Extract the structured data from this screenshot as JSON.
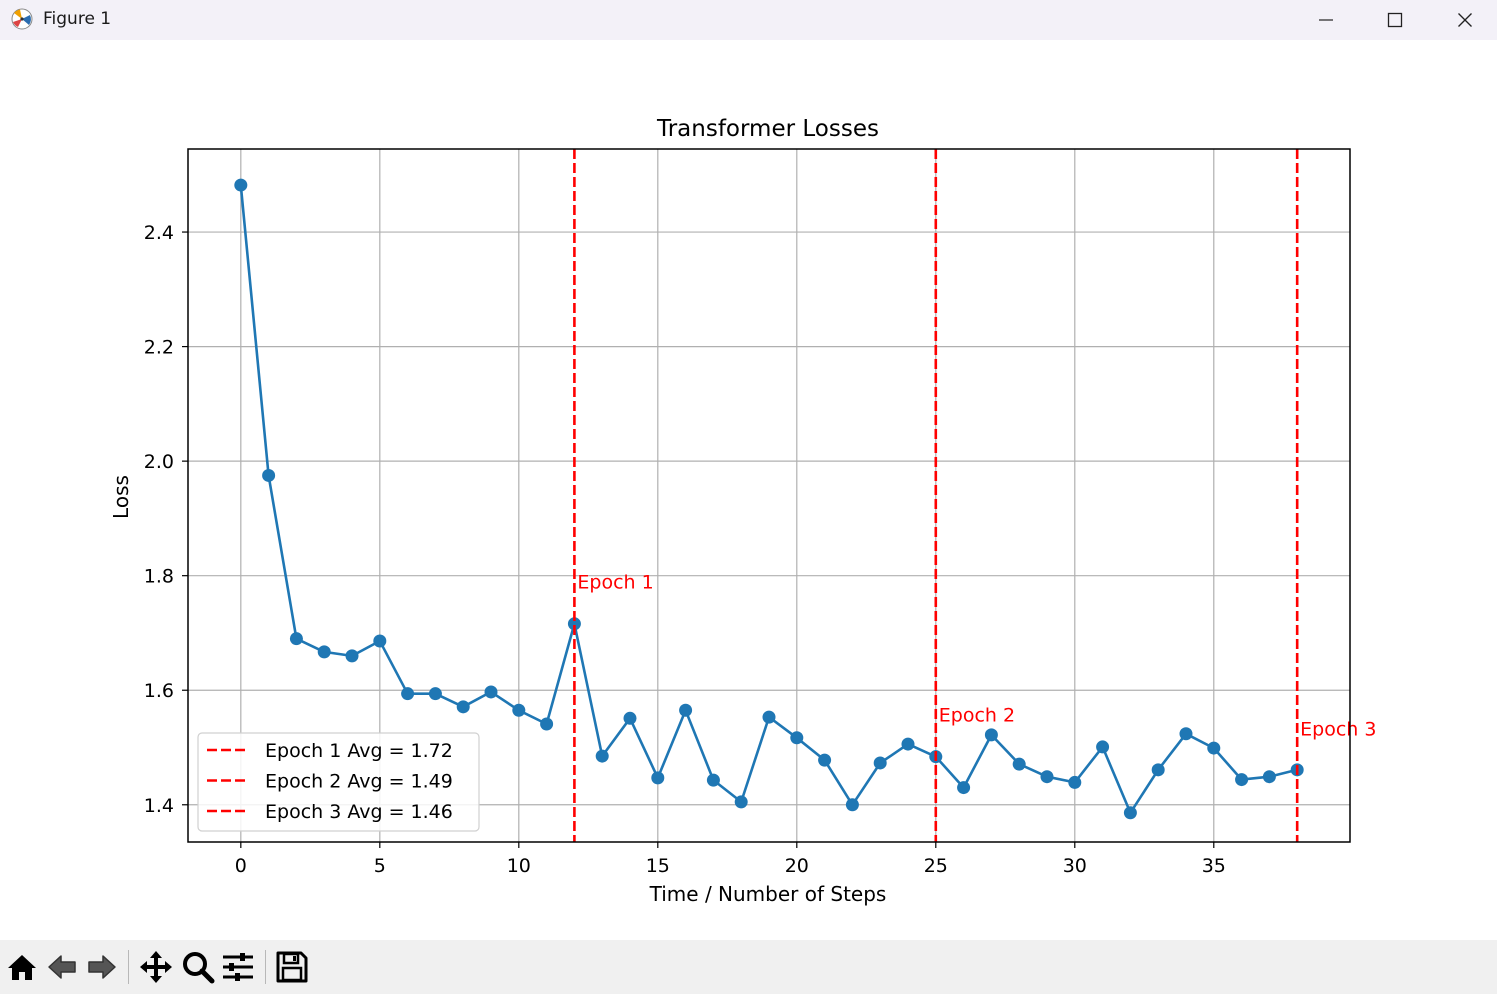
{
  "window": {
    "title": "Figure 1",
    "controls": [
      "minimize-icon",
      "maximize-icon",
      "close-icon"
    ]
  },
  "toolbar": {
    "tools": [
      "home-icon",
      "back-arrow-icon",
      "forward-arrow-icon",
      "pan-icon",
      "zoom-icon",
      "configure-subplots-icon",
      "save-icon"
    ]
  },
  "chart_data": {
    "type": "line",
    "title": "Transformer Losses",
    "xlabel": "Time / Number of Steps",
    "ylabel": "Loss",
    "xlim": [
      -1.9,
      39.9
    ],
    "ylim": [
      1.335,
      2.545
    ],
    "xticks": [
      0,
      5,
      10,
      15,
      20,
      25,
      30,
      35
    ],
    "yticks": [
      1.4,
      1.6,
      1.8,
      2.0,
      2.2,
      2.4
    ],
    "xtick_labels": [
      "0",
      "5",
      "10",
      "15",
      "20",
      "25",
      "30",
      "35"
    ],
    "ytick_labels": [
      "1.4",
      "1.6",
      "1.8",
      "2.0",
      "2.2",
      "2.4"
    ],
    "grid": true,
    "legend_position": "lower-left",
    "series": [
      {
        "color": "#1f77b4",
        "marker": "circle",
        "x": [
          0,
          1,
          2,
          3,
          4,
          5,
          6,
          7,
          8,
          9,
          10,
          11,
          12,
          13,
          14,
          15,
          16,
          17,
          18,
          19,
          20,
          21,
          22,
          23,
          24,
          25,
          26,
          27,
          28,
          29,
          30,
          31,
          32,
          33,
          34,
          35,
          36,
          37,
          38
        ],
        "values": [
          2.482,
          1.975,
          1.69,
          1.667,
          1.66,
          1.686,
          1.594,
          1.594,
          1.571,
          1.597,
          1.565,
          1.541,
          1.716,
          1.485,
          1.551,
          1.447,
          1.565,
          1.443,
          1.405,
          1.553,
          1.517,
          1.478,
          1.4,
          1.473,
          1.506,
          1.484,
          1.43,
          1.522,
          1.471,
          1.449,
          1.439,
          1.501,
          1.386,
          1.461,
          1.524,
          1.499,
          1.444,
          1.449,
          1.461
        ]
      }
    ],
    "epoch_lines": [
      {
        "x": 12,
        "label": "Epoch 1",
        "legend": "Epoch 1 Avg = 1.72",
        "annotation_y": 1.79
      },
      {
        "x": 25,
        "label": "Epoch 2",
        "legend": "Epoch 2 Avg = 1.49",
        "annotation_y": 1.558
      },
      {
        "x": 38,
        "label": "Epoch 3",
        "legend": "Epoch 3 Avg = 1.46",
        "annotation_y": 1.533
      }
    ],
    "epoch_line_color": "#ff0000"
  }
}
